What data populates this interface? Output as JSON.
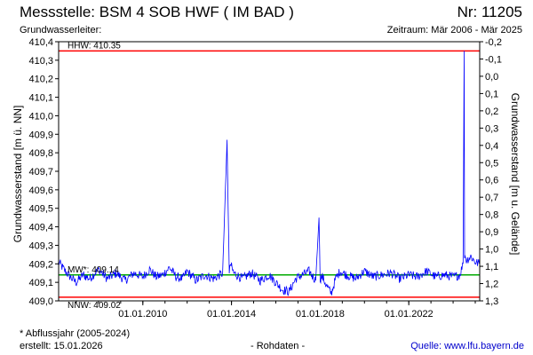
{
  "header": {
    "title": "Messstelle: BSM  4 SOB HWF ( IM BAD )",
    "number": "Nr: 11205",
    "aquifer": "Grundwasserleiter:",
    "period": "Zeitraum: Mär 2006 - Mär 2025"
  },
  "footer": {
    "footnote": "* Abflussjahr (2005-2024)",
    "created": "erstellt:  15.01.2026",
    "rawdata": "- Rohdaten -",
    "source": "Quelle:  www.lfu.bayern.de"
  },
  "colors": {
    "series": "#0000ff",
    "extreme": "#ff0000",
    "mean": "#00aa00",
    "axis": "#000000"
  },
  "chart_data": {
    "type": "line",
    "ylabel": "Grundwasserstand [m ü. NN]",
    "y2label": "Grundwasserstand [m u. Gelände]",
    "ylim": [
      409.0,
      410.4
    ],
    "y2lim": [
      1.3,
      -0.2
    ],
    "yticks": [
      "409,0",
      "409,1",
      "409,2",
      "409,3",
      "409,4",
      "409,5",
      "409,6",
      "409,7",
      "409,8",
      "409,9",
      "410,0",
      "410,1",
      "410,2",
      "410,3",
      "410,4"
    ],
    "y2ticks": [
      "-0,2",
      "-0,1",
      "0,0",
      "0,1",
      "0,2",
      "0,3",
      "0,4",
      "0,5",
      "0,6",
      "0,7",
      "0,8",
      "0,9",
      "1,0",
      "1,1",
      "1,2",
      "1,3"
    ],
    "xlim": [
      2006.2,
      2025.2
    ],
    "xticks": [
      {
        "label": "01.01.2010",
        "x": 2010.0
      },
      {
        "label": "01.01.2014",
        "x": 2014.0
      },
      {
        "label": "01.01.2018",
        "x": 2018.0
      },
      {
        "label": "01.01.2022",
        "x": 2022.0
      }
    ],
    "reference_lines": [
      {
        "label": "HHW: 410.35",
        "value": 410.35,
        "kind": "extreme"
      },
      {
        "label": "MW*: 409.14",
        "value": 409.14,
        "kind": "mean"
      },
      {
        "label": "NNW: 409.02",
        "value": 409.02,
        "kind": "extreme"
      }
    ],
    "series": [
      {
        "x": [
          2006.2,
          2006.5,
          2006.8,
          2007.0,
          2007.3,
          2007.6,
          2008.0,
          2008.4,
          2008.8,
          2009.2,
          2009.6,
          2010.0,
          2010.3,
          2010.6,
          2010.9,
          2011.2,
          2011.5,
          2011.8,
          2012.0,
          2012.4,
          2012.8,
          2013.2,
          2013.6,
          2013.8,
          2013.9,
          2013.95,
          2014.1,
          2014.5,
          2014.9,
          2015.3,
          2015.7,
          2016.0,
          2016.3,
          2016.6,
          2016.9,
          2017.2,
          2017.5,
          2017.8,
          2017.95,
          2018.0,
          2018.1,
          2018.3,
          2018.5,
          2018.7,
          2018.9,
          2019.2,
          2019.6,
          2020.0,
          2020.4,
          2020.8,
          2021.2,
          2021.6,
          2022.0,
          2022.4,
          2022.8,
          2023.2,
          2023.6,
          2024.0,
          2024.3,
          2024.45,
          2024.5,
          2024.52,
          2024.6,
          2024.8,
          2025.0,
          2025.2
        ],
        "y": [
          409.21,
          409.16,
          409.12,
          409.1,
          409.14,
          409.12,
          409.17,
          409.12,
          409.15,
          409.11,
          409.15,
          409.13,
          409.17,
          409.13,
          409.14,
          409.18,
          409.13,
          409.12,
          409.16,
          409.11,
          409.14,
          409.12,
          409.15,
          409.87,
          409.14,
          409.2,
          409.15,
          409.12,
          409.15,
          409.11,
          409.14,
          409.1,
          409.06,
          409.05,
          409.12,
          409.14,
          409.16,
          409.11,
          409.45,
          409.12,
          409.13,
          409.08,
          409.04,
          409.12,
          409.16,
          409.14,
          409.12,
          409.16,
          409.13,
          409.14,
          409.15,
          409.12,
          409.14,
          409.13,
          409.16,
          409.13,
          409.14,
          409.13,
          409.14,
          409.2,
          410.35,
          409.25,
          409.22,
          409.24,
          409.21,
          409.2
        ]
      }
    ]
  }
}
